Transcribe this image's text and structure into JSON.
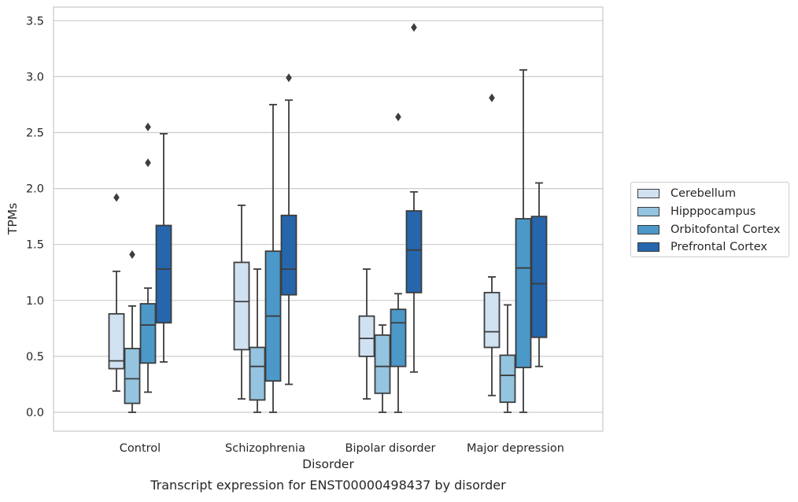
{
  "chart_data": {
    "type": "box",
    "title": "",
    "caption": "Transcript expression for ENST00000498437 by disorder",
    "xlabel": "Disorder",
    "ylabel": "TPMs",
    "ylim": [
      -0.17,
      3.62
    ],
    "yticks": [
      "0.0",
      "0.5",
      "1.0",
      "1.5",
      "2.0",
      "2.5",
      "3.0",
      "3.5"
    ],
    "categories": [
      "Control",
      "Schizophrenia",
      "Bipolar disorder",
      "Major depression"
    ],
    "grid": "horizontal",
    "legend_position": "right",
    "series": [
      {
        "name": "Cerebellum",
        "color": "#d0e1f2",
        "boxes": [
          {
            "whislo": 0.19,
            "q1": 0.39,
            "med": 0.46,
            "q3": 0.88,
            "whishi": 1.26,
            "fliers": [
              1.92
            ]
          },
          {
            "whislo": 0.12,
            "q1": 0.56,
            "med": 0.99,
            "q3": 1.34,
            "whishi": 1.85,
            "fliers": []
          },
          {
            "whislo": 0.12,
            "q1": 0.5,
            "med": 0.66,
            "q3": 0.86,
            "whishi": 1.28,
            "fliers": []
          },
          {
            "whislo": 0.15,
            "q1": 0.58,
            "med": 0.72,
            "q3": 1.07,
            "whishi": 1.21,
            "fliers": [
              2.81
            ]
          }
        ]
      },
      {
        "name": "Hipppocampus",
        "color": "#94c4df",
        "boxes": [
          {
            "whislo": 0.0,
            "q1": 0.08,
            "med": 0.3,
            "q3": 0.57,
            "whishi": 0.95,
            "fliers": [
              1.41
            ]
          },
          {
            "whislo": 0.0,
            "q1": 0.11,
            "med": 0.41,
            "q3": 0.58,
            "whishi": 1.28,
            "fliers": []
          },
          {
            "whislo": 0.0,
            "q1": 0.17,
            "med": 0.41,
            "q3": 0.69,
            "whishi": 0.78,
            "fliers": []
          },
          {
            "whislo": 0.0,
            "q1": 0.09,
            "med": 0.33,
            "q3": 0.51,
            "whishi": 0.96,
            "fliers": []
          }
        ]
      },
      {
        "name": "Orbitofontal Cortex",
        "color": "#4b98c9",
        "boxes": [
          {
            "whislo": 0.18,
            "q1": 0.44,
            "med": 0.78,
            "q3": 0.97,
            "whishi": 1.11,
            "fliers": [
              2.23,
              2.55
            ]
          },
          {
            "whislo": 0.0,
            "q1": 0.28,
            "med": 0.86,
            "q3": 1.44,
            "whishi": 2.75,
            "fliers": []
          },
          {
            "whislo": 0.0,
            "q1": 0.41,
            "med": 0.8,
            "q3": 0.92,
            "whishi": 1.06,
            "fliers": [
              2.64
            ]
          },
          {
            "whislo": 0.0,
            "q1": 0.4,
            "med": 1.29,
            "q3": 1.73,
            "whishi": 3.06,
            "fliers": []
          }
        ]
      },
      {
        "name": "Prefrontal Cortex",
        "color": "#2566ad",
        "boxes": [
          {
            "whislo": 0.45,
            "q1": 0.8,
            "med": 1.28,
            "q3": 1.67,
            "whishi": 2.49,
            "fliers": []
          },
          {
            "whislo": 0.25,
            "q1": 1.05,
            "med": 1.28,
            "q3": 1.76,
            "whishi": 2.79,
            "fliers": [
              2.99
            ]
          },
          {
            "whislo": 0.36,
            "q1": 1.07,
            "med": 1.45,
            "q3": 1.8,
            "whishi": 1.97,
            "fliers": [
              3.44
            ]
          },
          {
            "whislo": 0.41,
            "q1": 0.67,
            "med": 1.15,
            "q3": 1.75,
            "whishi": 2.05,
            "fliers": []
          }
        ]
      }
    ]
  }
}
